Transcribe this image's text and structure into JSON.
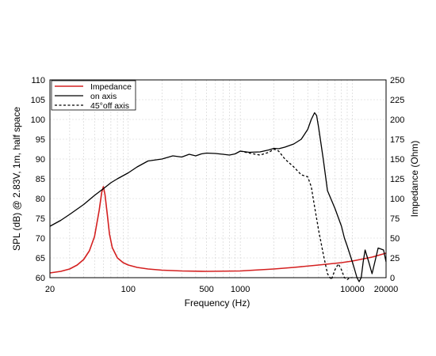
{
  "chart_data": {
    "type": "line",
    "xlabel": "Frequency (Hz)",
    "ylabel_left": "SPL (dB) @ 2.83V, 1m, half space",
    "ylabel_right": "Impedance (Ohm)",
    "x_scale": "log",
    "xlim": [
      20,
      20000
    ],
    "ylim_left": [
      60,
      110
    ],
    "ylim_right": [
      0,
      250
    ],
    "x_tick_labels": [
      "20",
      "100",
      "500",
      "1000",
      "10000",
      "20000"
    ],
    "x_tick_values": [
      20,
      100,
      500,
      1000,
      10000,
      20000
    ],
    "y_left_ticks": [
      60,
      65,
      70,
      75,
      80,
      85,
      90,
      95,
      100,
      105,
      110
    ],
    "y_right_ticks": [
      0,
      25,
      50,
      75,
      100,
      125,
      150,
      175,
      200,
      225,
      250
    ],
    "grid": true,
    "legend_position": "top-left",
    "series": [
      {
        "name": "Impedance",
        "axis": "right",
        "color": "#d42020",
        "style": "solid",
        "x": [
          20,
          25,
          30,
          35,
          40,
          45,
          50,
          55,
          58,
          60,
          62,
          65,
          68,
          72,
          80,
          90,
          100,
          120,
          150,
          200,
          300,
          500,
          1000,
          2000,
          3000,
          5000,
          8000,
          10000,
          15000,
          20000
        ],
        "y": [
          6,
          8,
          11,
          16,
          23,
          34,
          52,
          85,
          108,
          115,
          105,
          80,
          55,
          38,
          25,
          19,
          16,
          13,
          11,
          9.5,
          8.5,
          8,
          8.5,
          11,
          13,
          16,
          19,
          21,
          26,
          31
        ]
      },
      {
        "name": "on axis",
        "axis": "left",
        "color": "#000000",
        "style": "solid",
        "x": [
          20,
          25,
          30,
          40,
          50,
          60,
          70,
          80,
          100,
          120,
          150,
          200,
          250,
          300,
          350,
          400,
          450,
          500,
          600,
          700,
          800,
          900,
          1000,
          1200,
          1500,
          1800,
          2000,
          2200,
          2500,
          3000,
          3500,
          4000,
          4300,
          4600,
          4800,
          5000,
          5500,
          6000,
          7000,
          8000,
          8500,
          9000,
          10000,
          10500,
          11000,
          11500,
          12000,
          12500,
          13000,
          14000,
          15000,
          17000,
          19000,
          20000
        ],
        "y": [
          73,
          74.5,
          76,
          78.5,
          80.8,
          82.5,
          84,
          85,
          86.5,
          88,
          89.5,
          90,
          90.8,
          90.5,
          91.2,
          90.8,
          91.3,
          91.5,
          91.4,
          91.2,
          91,
          91.3,
          92,
          91.7,
          91.8,
          92.3,
          92.7,
          92.6,
          93,
          93.8,
          95,
          97.5,
          100,
          101.7,
          101,
          98,
          90,
          82,
          77.5,
          73,
          70,
          68,
          64,
          62,
          60,
          59,
          60,
          64,
          67,
          64,
          61,
          67.5,
          67,
          64
        ]
      },
      {
        "name": "45°off axis",
        "axis": "left",
        "color": "#000000",
        "style": "dashed",
        "x": [
          1000,
          1200,
          1500,
          1800,
          2000,
          2200,
          2500,
          3000,
          3500,
          4000,
          4300,
          4600,
          5000,
          5500,
          6000,
          6500,
          7000,
          7500,
          8000,
          8500,
          9000,
          9500,
          10000
        ],
        "y": [
          92,
          91.5,
          91,
          91.7,
          92.5,
          92,
          90,
          88,
          86,
          85.5,
          83,
          78,
          72,
          66,
          61,
          59.5,
          62,
          63.5,
          62,
          60,
          59.5,
          60,
          60
        ]
      }
    ]
  }
}
